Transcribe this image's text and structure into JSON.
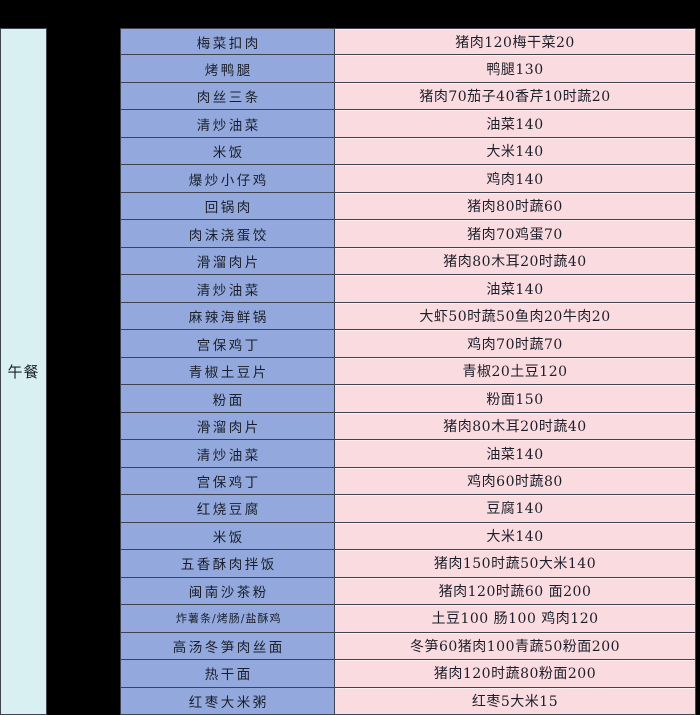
{
  "page": {
    "background": "#000000"
  },
  "sidebar": {
    "label": "午餐",
    "bg_color": "#d8f0f2"
  },
  "table": {
    "colors": {
      "dish_bg": "#93a9dd",
      "ingredient_bg": "#fadbe0",
      "border": "#3f4450",
      "text": "#1c1f2a"
    },
    "columns": [
      "dish",
      "ingredients"
    ],
    "rows": [
      {
        "dish": "梅菜扣肉",
        "ingredients": "猪肉120梅干菜20"
      },
      {
        "dish": "烤鸭腿",
        "ingredients": "鸭腿130"
      },
      {
        "dish": "肉丝三条",
        "ingredients": "猪肉70茄子40香芹10时蔬20"
      },
      {
        "dish": "清炒油菜",
        "ingredients": "油菜140"
      },
      {
        "dish": "米饭",
        "ingredients": "大米140"
      },
      {
        "dish": "爆炒小仔鸡",
        "ingredients": "鸡肉140"
      },
      {
        "dish": "回锅肉",
        "ingredients": "猪肉80时蔬60"
      },
      {
        "dish": "肉沫浇蛋饺",
        "ingredients": "猪肉70鸡蛋70"
      },
      {
        "dish": "滑溜肉片",
        "ingredients": "猪肉80木耳20时蔬40"
      },
      {
        "dish": "清炒油菜",
        "ingredients": "油菜140"
      },
      {
        "dish": "麻辣海鲜锅",
        "ingredients": "大虾50时蔬50鱼肉20牛肉20"
      },
      {
        "dish": "宫保鸡丁",
        "ingredients": "鸡肉70时蔬70"
      },
      {
        "dish": "青椒土豆片",
        "ingredients": "青椒20土豆120"
      },
      {
        "dish": "粉面",
        "ingredients": "粉面150"
      },
      {
        "dish": "滑溜肉片",
        "ingredients": "猪肉80木耳20时蔬40"
      },
      {
        "dish": "清炒油菜",
        "ingredients": "油菜140"
      },
      {
        "dish": "宫保鸡丁",
        "ingredients": "鸡肉60时蔬80"
      },
      {
        "dish": "红烧豆腐",
        "ingredients": "豆腐140"
      },
      {
        "dish": "米饭",
        "ingredients": "大米140"
      },
      {
        "dish": "五香酥肉拌饭",
        "ingredients": "猪肉150时蔬50大米140"
      },
      {
        "dish": "闽南沙茶粉",
        "ingredients": "猪肉120时蔬60 面200"
      },
      {
        "dish": "炸薯条/烤肠/盐酥鸡",
        "ingredients": "土豆100 肠100 鸡肉120",
        "small": true
      },
      {
        "dish": "高汤冬笋肉丝面",
        "ingredients": "冬笋60猪肉100青蔬50粉面200"
      },
      {
        "dish": "热干面",
        "ingredients": "猪肉120时蔬80粉面200"
      },
      {
        "dish": "红枣大米粥",
        "ingredients": "红枣5大米15"
      }
    ]
  }
}
